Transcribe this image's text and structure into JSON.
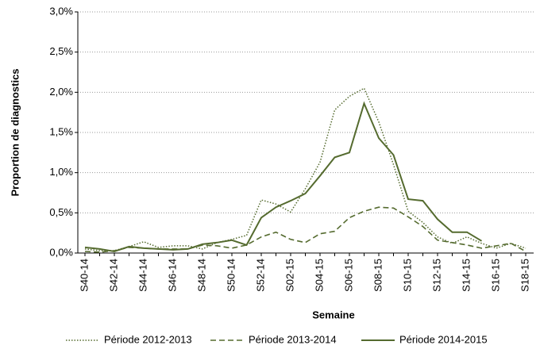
{
  "chart_data": {
    "type": "line",
    "y_label": "Proportion de diagnostics",
    "x_label": "Semaine",
    "categories": [
      "S40-14",
      null,
      "S42-14",
      null,
      "S44-14",
      null,
      "S46-14",
      null,
      "S48-14",
      null,
      "S50-14",
      null,
      "S52-14",
      null,
      "S02-15",
      null,
      "S04-15",
      null,
      "S06-15",
      null,
      "S08-15",
      null,
      "S10-15",
      null,
      "S12-15",
      null,
      "S14-15",
      null,
      "S16-15",
      null,
      "S18-15"
    ],
    "series": [
      {
        "name": "Période 2012-2013",
        "color": "#556b2f",
        "style": "dotted",
        "values": [
          0.05,
          0.03,
          0.03,
          0.08,
          0.14,
          0.07,
          0.09,
          0.09,
          0.05,
          0.13,
          0.17,
          0.22,
          0.66,
          0.61,
          0.51,
          0.8,
          1.13,
          1.78,
          1.95,
          2.05,
          1.63,
          1.1,
          0.52,
          0.38,
          0.2,
          0.12,
          0.2,
          0.12,
          0.06,
          0.12,
          0.06
        ]
      },
      {
        "name": "Période 2013-2014",
        "color": "#556b2f",
        "style": "dashed",
        "values": [
          0.02,
          0.01,
          0.03,
          0.07,
          0.06,
          0.05,
          0.05,
          0.05,
          0.1,
          0.09,
          0.06,
          0.1,
          0.2,
          0.26,
          0.17,
          0.13,
          0.24,
          0.27,
          0.44,
          0.52,
          0.57,
          0.56,
          0.45,
          0.33,
          0.16,
          0.13,
          0.1,
          0.06,
          0.09,
          0.12,
          0.02
        ]
      },
      {
        "name": "Période 2014-2015",
        "color": "#556b2f",
        "style": "solid",
        "values": [
          0.07,
          0.05,
          0.02,
          0.08,
          0.06,
          0.05,
          0.04,
          0.05,
          0.11,
          0.13,
          0.16,
          0.1,
          0.44,
          0.57,
          0.65,
          0.74,
          0.96,
          1.19,
          1.25,
          1.86,
          1.43,
          1.22,
          0.67,
          0.65,
          0.42,
          0.26,
          0.26,
          0.15,
          null,
          null,
          null
        ]
      }
    ],
    "ylim": [
      0,
      3
    ],
    "yticks": [
      {
        "value": 0,
        "label": "0,0%"
      },
      {
        "value": 0.5,
        "label": "0,5%"
      },
      {
        "value": 1,
        "label": "1,0%"
      },
      {
        "value": 1.5,
        "label": "1,5%"
      },
      {
        "value": 2,
        "label": "2,0%"
      },
      {
        "value": 2.5,
        "label": "2,5%"
      },
      {
        "value": 3,
        "label": "3,0%"
      }
    ],
    "grid": true
  }
}
